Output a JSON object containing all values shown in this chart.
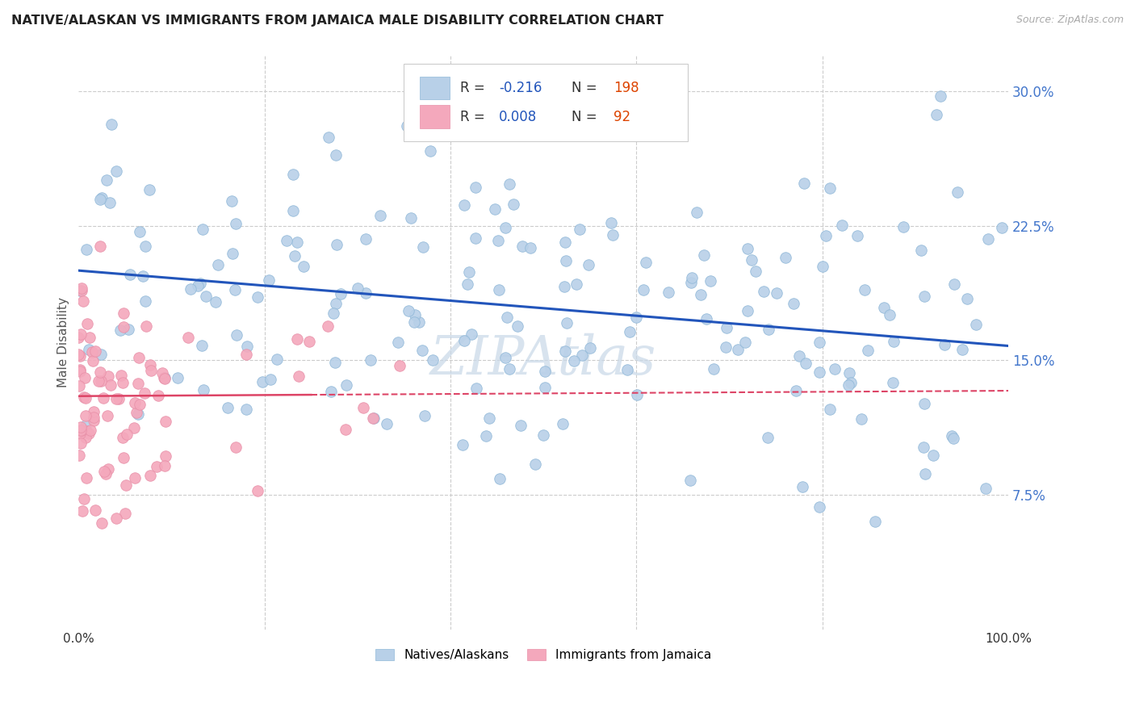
{
  "title": "NATIVE/ALASKAN VS IMMIGRANTS FROM JAMAICA MALE DISABILITY CORRELATION CHART",
  "source": "Source: ZipAtlas.com",
  "ylabel": "Male Disability",
  "blue_color": "#b8d0e8",
  "pink_color": "#f4a8bc",
  "blue_edge_color": "#90b8d8",
  "pink_edge_color": "#e890a8",
  "blue_line_color": "#2255bb",
  "pink_line_color": "#dd4466",
  "grid_color": "#cccccc",
  "title_color": "#222222",
  "source_color": "#aaaaaa",
  "watermark": "ZIPAtlas",
  "watermark_color": "#c8d8e8",
  "blue_r": -0.216,
  "pink_r": 0.008,
  "blue_n": 198,
  "pink_n": 92,
  "blue_intercept": 0.2,
  "blue_slope": -0.042,
  "pink_intercept": 0.13,
  "pink_slope": 0.003,
  "ytick_color": "#4477cc",
  "xtick_color": "#333333",
  "legend_r_color": "#2255bb",
  "legend_n_color": "#dd4400"
}
